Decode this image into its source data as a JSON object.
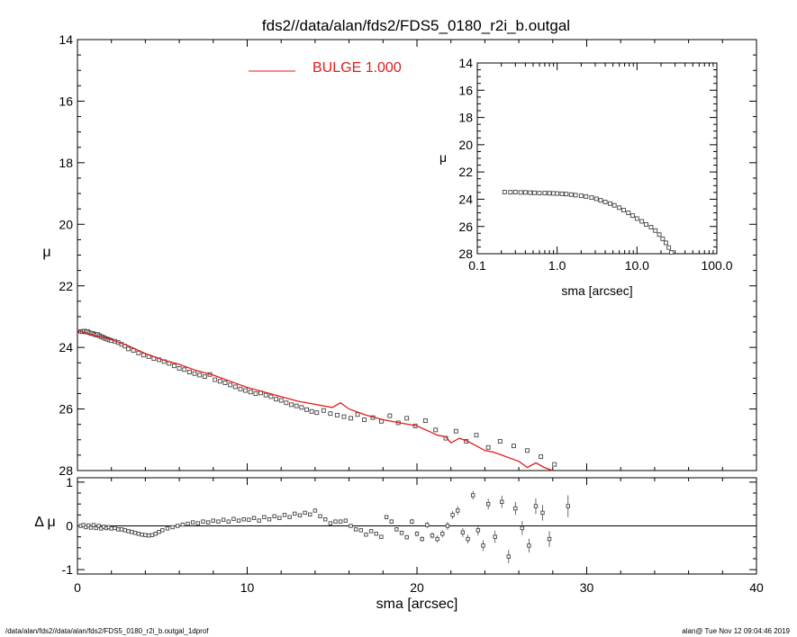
{
  "title": "fds2//data/alan/fds2/FDS5_0180_r2i_b.outgal",
  "footer": {
    "left": "/data/alan/fds2//data/alan/fds2/FDS5_0180_r2i_b.outgal_1dprof",
    "right": "alan@  Tue Nov 12 09:04:46 2019"
  },
  "colors": {
    "model": "#e41a1c",
    "points": "#444444",
    "axes": "#000000"
  },
  "chart_data": [
    {
      "id": "main",
      "type": "scatter",
      "xlim": [
        0,
        40
      ],
      "ylim": [
        28,
        14
      ],
      "y_inverted": true,
      "xticks": [
        0,
        10,
        20,
        30,
        40
      ],
      "xtick_labels": [
        "0",
        "10",
        "20",
        "30",
        "40"
      ],
      "yticks": [
        14,
        16,
        18,
        20,
        22,
        24,
        26,
        28
      ],
      "ytick_labels": [
        "14",
        "16",
        "18",
        "20",
        "22",
        "24",
        "26",
        "28"
      ],
      "ylabel": "μ",
      "legend": {
        "label": "BULGE  1.000",
        "position": "top-center"
      },
      "series": [
        {
          "kind": "points",
          "x": [
            0.2,
            0.3,
            0.4,
            0.5,
            0.6,
            0.7,
            0.8,
            0.9,
            1.0,
            1.1,
            1.2,
            1.3,
            1.4,
            1.5,
            1.6,
            1.7,
            1.8,
            1.9,
            2.0,
            2.2,
            2.4,
            2.6,
            2.8,
            3.0,
            3.3,
            3.6,
            3.9,
            4.2,
            4.5,
            4.8,
            5.1,
            5.4,
            5.7,
            6.0,
            6.3,
            6.6,
            6.9,
            7.2,
            7.5,
            7.8,
            8.1,
            8.4,
            8.7,
            9.0,
            9.3,
            9.6,
            9.9,
            10.2,
            10.5,
            10.8,
            11.1,
            11.4,
            11.7,
            12.0,
            12.3,
            12.6,
            12.9,
            13.2,
            13.5,
            13.8,
            14.1,
            14.5,
            14.9,
            15.3,
            15.7,
            16.1,
            16.5,
            16.9,
            17.4,
            17.9,
            18.4,
            18.9,
            19.4,
            19.9,
            20.5,
            21.1,
            21.7,
            22.3,
            22.9,
            23.5,
            24.2,
            24.9,
            25.7,
            26.5,
            27.3,
            28.1
          ],
          "y": [
            23.48,
            23.49,
            23.47,
            23.5,
            23.48,
            23.52,
            23.55,
            23.54,
            23.57,
            23.6,
            23.58,
            23.62,
            23.65,
            23.67,
            23.7,
            23.72,
            23.74,
            23.76,
            23.78,
            23.8,
            23.84,
            23.9,
            23.96,
            24.05,
            24.1,
            24.18,
            24.25,
            24.3,
            24.36,
            24.4,
            24.46,
            24.52,
            24.6,
            24.68,
            24.72,
            24.8,
            24.85,
            24.9,
            24.95,
            24.88,
            25.05,
            25.1,
            25.15,
            25.22,
            25.28,
            25.35,
            25.4,
            25.45,
            25.5,
            25.48,
            25.55,
            25.6,
            25.68,
            25.72,
            25.8,
            25.86,
            25.9,
            25.95,
            26.02,
            26.08,
            26.12,
            26.05,
            26.15,
            26.2,
            26.25,
            26.3,
            26.18,
            26.35,
            26.28,
            26.4,
            26.22,
            26.45,
            26.3,
            26.55,
            26.38,
            26.68,
            26.95,
            26.72,
            27.05,
            26.85,
            27.25,
            27.05,
            27.2,
            27.35,
            27.55,
            27.8
          ]
        },
        {
          "kind": "line",
          "name": "BULGE  1.000",
          "x": [
            0,
            1,
            2,
            3,
            4,
            5,
            6,
            7,
            8,
            9,
            10,
            11,
            12,
            13,
            14,
            15,
            15.5,
            16,
            17,
            18,
            19,
            20,
            20.8,
            21.2,
            21.7,
            22,
            22.5,
            23,
            23.5,
            24,
            24.5,
            25,
            25.5,
            26,
            26.5,
            27,
            27.5,
            28
          ],
          "y": [
            23.45,
            23.6,
            23.75,
            23.95,
            24.2,
            24.4,
            24.55,
            24.75,
            24.9,
            25.1,
            25.3,
            25.45,
            25.6,
            25.75,
            25.85,
            25.95,
            25.8,
            26.0,
            26.2,
            26.35,
            26.45,
            26.55,
            26.75,
            26.85,
            26.9,
            27.1,
            26.95,
            27.05,
            27.2,
            27.35,
            27.4,
            27.5,
            27.6,
            27.7,
            27.9,
            27.75,
            27.9,
            28.0
          ]
        }
      ]
    },
    {
      "id": "inset",
      "type": "scatter",
      "x_scale": "log",
      "xlim": [
        0.1,
        100
      ],
      "ylim": [
        28,
        14
      ],
      "y_inverted": true,
      "xticks": [
        0.1,
        1,
        10,
        100
      ],
      "xtick_labels": [
        "0.1",
        "1.0",
        "10.0",
        "100.0"
      ],
      "yticks": [
        14,
        16,
        18,
        20,
        22,
        24,
        26,
        28
      ],
      "ytick_labels": [
        "14",
        "16",
        "18",
        "20",
        "22",
        "24",
        "26",
        "28"
      ],
      "xlabel": "sma [arcsec]",
      "ylabel": "μ",
      "series": [
        {
          "kind": "points",
          "x": [
            0.22,
            0.26,
            0.3,
            0.35,
            0.4,
            0.46,
            0.52,
            0.6,
            0.7,
            0.8,
            0.9,
            1.0,
            1.15,
            1.3,
            1.5,
            1.7,
            2.0,
            2.3,
            2.7,
            3.1,
            3.5,
            4.0,
            4.6,
            5.2,
            6.0,
            6.8,
            7.8,
            8.8,
            10,
            11.5,
            13,
            15,
            17,
            19,
            21,
            23,
            25,
            27
          ],
          "y": [
            23.48,
            23.49,
            23.48,
            23.5,
            23.5,
            23.52,
            23.53,
            23.55,
            23.55,
            23.56,
            23.57,
            23.58,
            23.6,
            23.62,
            23.66,
            23.7,
            23.75,
            23.8,
            23.88,
            23.97,
            24.08,
            24.2,
            24.32,
            24.45,
            24.62,
            24.8,
            25.0,
            25.2,
            25.42,
            25.62,
            25.85,
            26.05,
            26.3,
            26.6,
            26.9,
            27.2,
            27.55,
            27.9
          ]
        }
      ]
    },
    {
      "id": "residuals",
      "type": "scatter",
      "xlim": [
        0,
        40
      ],
      "ylim": [
        -1.1,
        1.1
      ],
      "xticks": [
        0,
        10,
        20,
        30,
        40
      ],
      "xtick_labels": [
        "0",
        "10",
        "20",
        "30",
        "40"
      ],
      "yticks": [
        -1,
        0,
        1
      ],
      "ytick_labels": [
        "-1",
        "0",
        "1"
      ],
      "xlabel": "sma [arcsec]",
      "ylabel": "Δ μ",
      "zero_line": true,
      "series": [
        {
          "kind": "points_with_errors",
          "x": [
            0.2,
            0.35,
            0.5,
            0.65,
            0.8,
            0.95,
            1.1,
            1.25,
            1.4,
            1.55,
            1.7,
            1.85,
            2.0,
            2.2,
            2.4,
            2.6,
            2.8,
            3.0,
            3.2,
            3.4,
            3.6,
            3.8,
            4.0,
            4.2,
            4.4,
            4.6,
            4.8,
            5.0,
            5.3,
            5.6,
            5.9,
            6.2,
            6.5,
            6.8,
            7.1,
            7.4,
            7.7,
            8.0,
            8.3,
            8.6,
            8.9,
            9.2,
            9.5,
            9.8,
            10.1,
            10.4,
            10.7,
            11.0,
            11.3,
            11.6,
            11.9,
            12.2,
            12.5,
            12.8,
            13.1,
            13.4,
            13.7,
            14.0,
            14.3,
            14.6,
            14.9,
            15.2,
            15.5,
            15.8,
            16.1,
            16.4,
            16.7,
            17.0,
            17.3,
            17.6,
            17.9,
            18.2,
            18.5,
            18.8,
            19.1,
            19.4,
            19.7,
            20.0,
            20.3,
            20.6,
            20.9,
            21.2,
            21.5,
            21.8,
            22.1,
            22.4,
            22.7,
            23.0,
            23.3,
            23.6,
            23.9,
            24.2,
            24.6,
            25.0,
            25.4,
            25.8,
            26.2,
            26.6,
            27.0,
            27.4,
            27.8,
            28.9
          ],
          "y": [
            0.0,
            0.02,
            -0.03,
            0.01,
            -0.04,
            0.02,
            -0.05,
            0.0,
            -0.06,
            -0.02,
            -0.05,
            -0.03,
            -0.06,
            -0.05,
            -0.08,
            -0.08,
            -0.1,
            -0.12,
            -0.14,
            -0.16,
            -0.18,
            -0.2,
            -0.21,
            -0.22,
            -0.21,
            -0.18,
            -0.14,
            -0.1,
            -0.06,
            -0.03,
            0.0,
            0.03,
            0.05,
            0.08,
            0.06,
            0.1,
            0.08,
            0.12,
            0.1,
            0.14,
            0.1,
            0.16,
            0.12,
            0.15,
            0.14,
            0.18,
            0.12,
            0.2,
            0.15,
            0.22,
            0.18,
            0.25,
            0.2,
            0.28,
            0.24,
            0.3,
            0.26,
            0.35,
            0.22,
            0.15,
            0.06,
            0.1,
            0.1,
            0.12,
            0.0,
            -0.08,
            -0.1,
            -0.2,
            -0.12,
            -0.18,
            -0.25,
            0.2,
            0.1,
            -0.08,
            -0.16,
            -0.26,
            0.1,
            -0.18,
            -0.3,
            0.02,
            -0.22,
            -0.3,
            -0.18,
            0.0,
            0.25,
            0.35,
            -0.15,
            -0.3,
            0.7,
            -0.1,
            -0.45,
            0.5,
            -0.25,
            0.55,
            -0.7,
            0.4,
            -0.05,
            -0.45,
            0.45,
            0.3,
            -0.3,
            0.45
          ],
          "err": [
            0.01,
            0.01,
            0.01,
            0.01,
            0.01,
            0.01,
            0.01,
            0.01,
            0.01,
            0.01,
            0.01,
            0.01,
            0.01,
            0.01,
            0.01,
            0.01,
            0.01,
            0.01,
            0.01,
            0.01,
            0.01,
            0.01,
            0.01,
            0.01,
            0.01,
            0.01,
            0.01,
            0.01,
            0.02,
            0.02,
            0.02,
            0.02,
            0.02,
            0.02,
            0.02,
            0.02,
            0.02,
            0.02,
            0.02,
            0.02,
            0.02,
            0.02,
            0.02,
            0.02,
            0.02,
            0.02,
            0.02,
            0.02,
            0.02,
            0.02,
            0.02,
            0.03,
            0.03,
            0.03,
            0.03,
            0.03,
            0.03,
            0.03,
            0.03,
            0.03,
            0.03,
            0.03,
            0.03,
            0.03,
            0.03,
            0.04,
            0.04,
            0.04,
            0.04,
            0.04,
            0.04,
            0.05,
            0.05,
            0.05,
            0.05,
            0.05,
            0.06,
            0.06,
            0.06,
            0.07,
            0.07,
            0.08,
            0.08,
            0.09,
            0.09,
            0.1,
            0.1,
            0.1,
            0.1,
            0.12,
            0.12,
            0.12,
            0.14,
            0.14,
            0.15,
            0.15,
            0.16,
            0.16,
            0.18,
            0.18,
            0.18,
            0.25
          ]
        }
      ]
    }
  ]
}
